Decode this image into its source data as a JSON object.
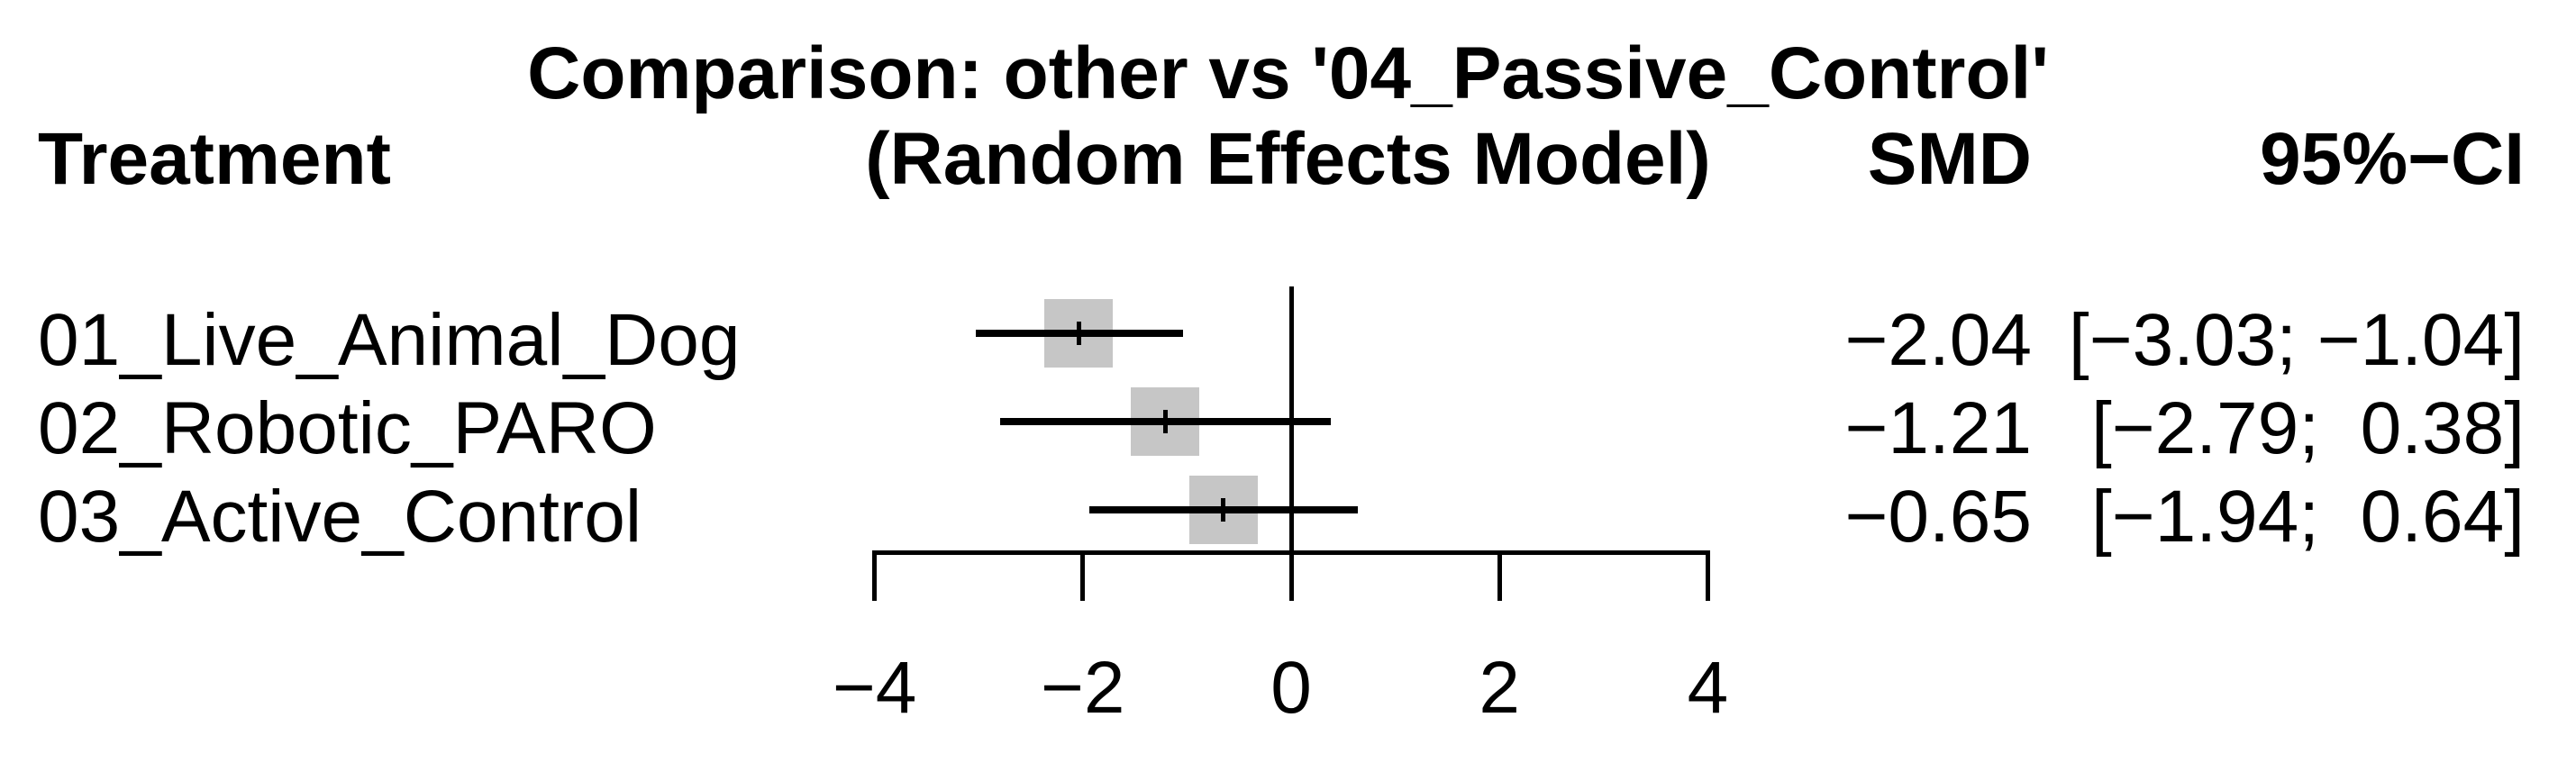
{
  "header": {
    "title": "Comparison: other vs '04_Passive_Control'",
    "subtitle": "(Random Effects Model)",
    "col_treatment": "Treatment",
    "col_smd": "SMD",
    "col_ci": "95%−CI"
  },
  "chart_data": {
    "type": "forest",
    "title": "Comparison: other vs '04_Passive_Control'",
    "subtitle": "(Random Effects Model)",
    "columns": [
      "Treatment",
      "SMD",
      "95%−CI"
    ],
    "rows": [
      {
        "treatment": "01_Live_Animal_Dog",
        "smd": -2.04,
        "ci_low": -3.03,
        "ci_high": -1.04,
        "smd_label": "−2.04",
        "ci_label": "[−3.03; −1.04]"
      },
      {
        "treatment": "02_Robotic_PARO",
        "smd": -1.21,
        "ci_low": -2.79,
        "ci_high": 0.38,
        "smd_label": "−1.21",
        "ci_label": "[−2.79;  0.38]"
      },
      {
        "treatment": "03_Active_Control",
        "smd": -0.65,
        "ci_low": -1.94,
        "ci_high": 0.64,
        "smd_label": "−0.65",
        "ci_label": "[−1.94;  0.64]"
      }
    ],
    "x_axis": {
      "range": [
        -4,
        4
      ],
      "ticks": [
        -4,
        -2,
        0,
        2,
        4
      ],
      "tick_labels": [
        "−4",
        "−2",
        "0",
        "2",
        "4"
      ],
      "reference_line": 0
    },
    "legend_position": "none",
    "grid": false,
    "colors": {
      "square": "#c6c6c6",
      "line": "#000000",
      "text": "#000000",
      "background": "#ffffff"
    }
  }
}
